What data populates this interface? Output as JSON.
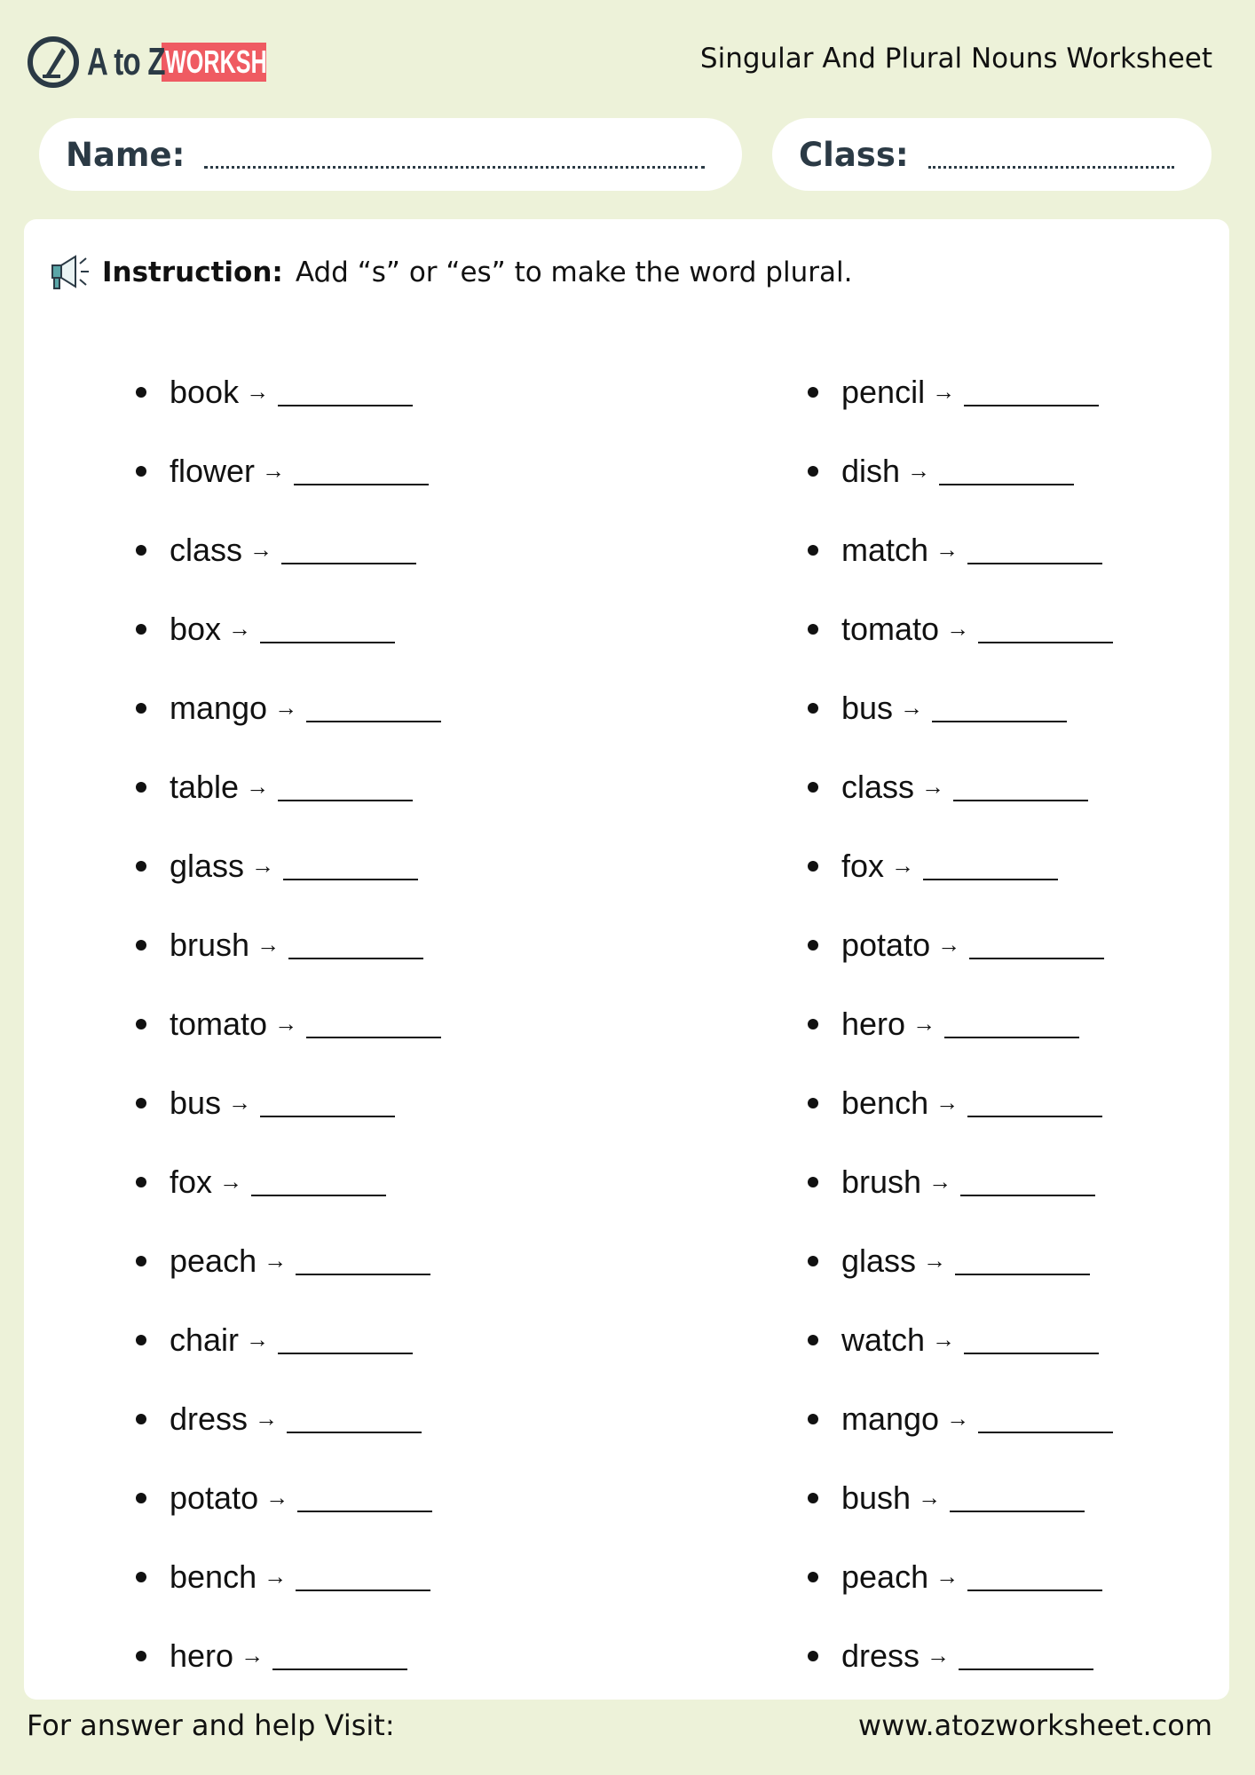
{
  "header": {
    "logo": {
      "text_main": "A to Z",
      "text_badge": "WORKSHEET"
    },
    "title": "Singular And Plural Nouns Worksheet"
  },
  "fields": {
    "name_label": "Name:",
    "class_label": "Class:"
  },
  "instruction": {
    "icon": "megaphone-icon",
    "label": "Instruction:",
    "text": "Add “s” or “es” to make the word plural."
  },
  "arrow": "→",
  "left_words": [
    "book",
    "flower",
    "class",
    "box",
    "mango",
    "table",
    "glass",
    "brush",
    "tomato",
    "bus",
    "fox",
    "peach",
    "chair",
    "dress",
    "potato",
    "bench",
    "hero"
  ],
  "right_words": [
    "pencil",
    "dish",
    "match",
    "tomato",
    "bus",
    "class",
    "fox",
    "potato",
    "hero",
    "bench",
    "brush",
    "glass",
    "watch",
    "mango",
    "bush",
    "peach",
    "dress"
  ],
  "footer": {
    "left": "For answer and help Visit:",
    "right": "www.atozworksheet.com"
  },
  "colors": {
    "background": "#edf2d9",
    "badge": "#ef5b62",
    "dark": "#2b3a45"
  }
}
